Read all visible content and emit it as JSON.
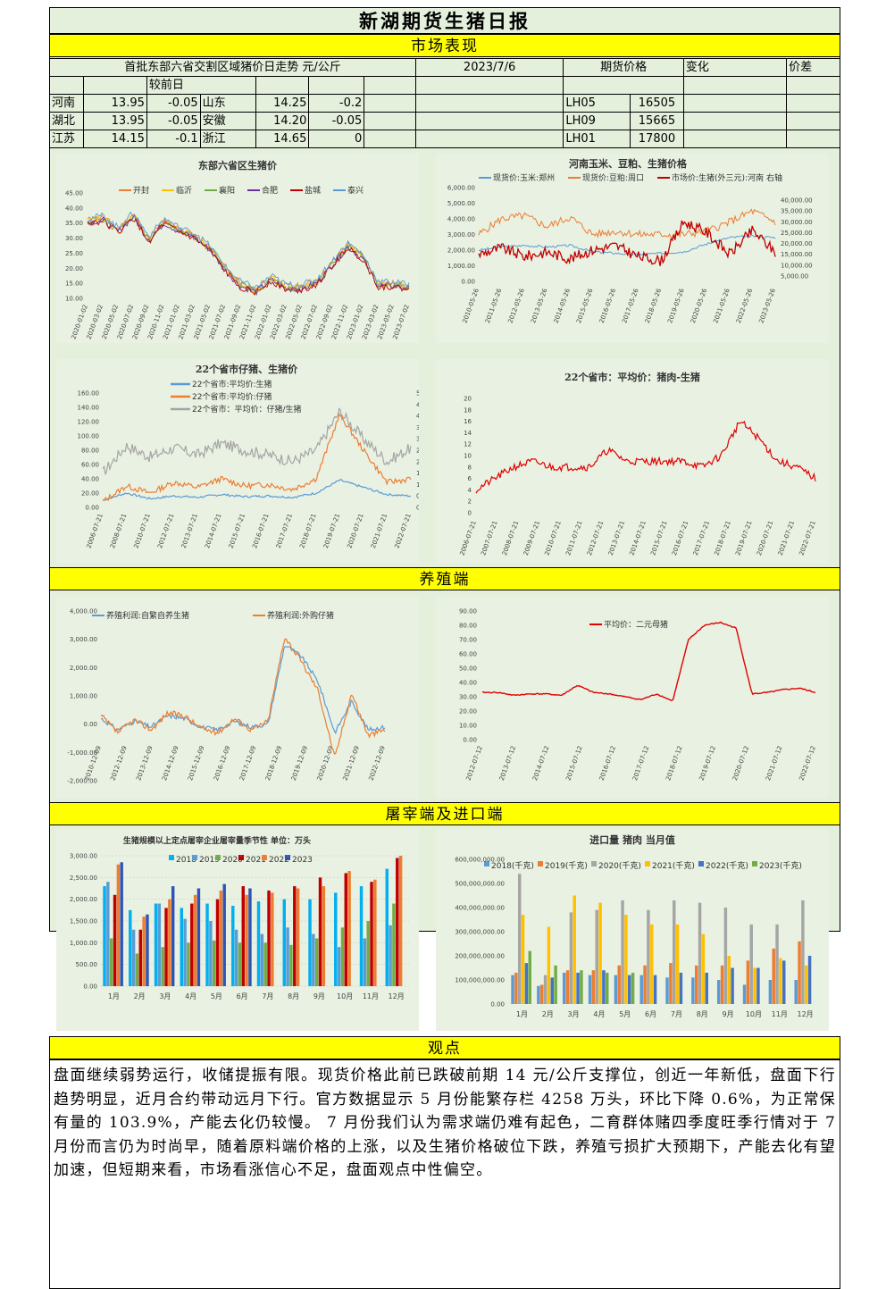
{
  "header": {
    "title": "新湖期货生猪日报"
  },
  "sections": {
    "market": "市场表现",
    "breeding": "养殖端",
    "slaughter": "屠宰端及进口端",
    "view": "观点"
  },
  "price_table": {
    "caption": "首批东部六省交割区域猪价日走势 元/公斤",
    "date": "2023/7/6",
    "futures_header": "期货价格",
    "change_header": "变化",
    "spread_header": "价差",
    "prev_label": "较前日",
    "rows": [
      {
        "p1": "河南",
        "v1": "13.95",
        "d1": "-0.05",
        "p2": "山东",
        "v2": "14.25",
        "d2": "-0.2",
        "contract": "LH05",
        "price": "16505"
      },
      {
        "p1": "湖北",
        "v1": "13.95",
        "d1": "-0.05",
        "p2": "安徽",
        "v2": "14.20",
        "d2": "-0.05",
        "contract": "LH09",
        "price": "15665"
      },
      {
        "p1": "江苏",
        "v1": "14.15",
        "d1": "-0.1",
        "p2": "浙江",
        "v2": "14.65",
        "d2": "0",
        "contract": "LH01",
        "price": "17800"
      }
    ]
  },
  "charts": {
    "c1": {
      "title": "东部六省区生猪价",
      "legend": [
        "开封",
        "临沂",
        "襄阳",
        "合肥",
        "盐城",
        "泰兴"
      ],
      "colors": [
        "#ed7d31",
        "#ffc000",
        "#70ad47",
        "#7030a0",
        "#c00000",
        "#5b9bd5"
      ],
      "yticks": [
        "45.00",
        "40.00",
        "35.00",
        "30.00",
        "25.00",
        "20.00",
        "15.00",
        "10.00"
      ],
      "xticks": [
        "2020-01-02",
        "2020-03-02",
        "2020-05-02",
        "2020-07-02",
        "2020-09-02",
        "2020-11-02",
        "2021-01-02",
        "2021-03-02",
        "2021-05-02",
        "2021-07-02",
        "2021-09-02",
        "2021-11-02",
        "2022-01-02",
        "2022-03-02",
        "2022-05-02",
        "2022-07-02",
        "2022-09-02",
        "2022-11-02",
        "2023-01-02",
        "2023-03-02",
        "2023-05-02",
        "2023-07-02"
      ]
    },
    "c2": {
      "title": "河南玉米、豆粕、生猪价格",
      "legend": [
        "现货价:玉米:郑州",
        "现货价:豆粕:周口",
        "市场价:生猪(外三元):河南 右轴"
      ],
      "colors": [
        "#5b9bd5",
        "#ed7d31",
        "#c00000"
      ],
      "yticks_left": [
        "6,000.00",
        "5,000.00",
        "4,000.00",
        "3,000.00",
        "2,000.00",
        "1,000.00",
        "0.00"
      ],
      "yticks_right": [
        "40,000.00",
        "35,000.00",
        "30,000.00",
        "25,000.00",
        "20,000.00",
        "15,000.00",
        "10,000.00",
        "5,000.00"
      ],
      "xticks": [
        "2010-05-26",
        "2011-05-26",
        "2012-05-26",
        "2013-05-26",
        "2014-05-26",
        "2015-05-26",
        "2016-05-26",
        "2017-05-26",
        "2018-05-26",
        "2019-05-26",
        "2020-05-26",
        "2021-05-26",
        "2022-05-26",
        "2023-05-26"
      ]
    },
    "c3": {
      "title": "22个省市仔猪、生猪价",
      "legend": [
        "22个省市:平均价:生猪",
        "22个省市:平均价:仔猪",
        "22个省市：平均价：仔猪/生猪"
      ],
      "colors": [
        "#5b9bd5",
        "#ed7d31",
        "#a5a5a5"
      ],
      "yticks_left": [
        "160.00",
        "140.00",
        "120.00",
        "100.00",
        "80.00",
        "60.00",
        "40.00",
        "20.00",
        "0.00"
      ],
      "yticks_right": [
        "5.00",
        "4.50",
        "4.00",
        "3.50",
        "3.00",
        "2.50",
        "2.00",
        "1.50",
        "1.00",
        "0.50",
        "0.00"
      ],
      "xticks": [
        "2006-07-21",
        "2008-07-21",
        "2010-07-21",
        "2012-07-21",
        "2013-07-21",
        "2014-07-21",
        "2015-07-21",
        "2016-07-21",
        "2017-07-21",
        "2018-07-21",
        "2019-07-21",
        "2020-07-21",
        "2021-07-21",
        "2022-07-21"
      ]
    },
    "c4": {
      "title": "22个省市：平均价：猪肉-生猪",
      "colors": [
        "#e00000"
      ],
      "yticks": [
        "20",
        "18",
        "16",
        "14",
        "12",
        "10",
        "8",
        "6",
        "4",
        "2",
        "0"
      ],
      "xticks": [
        "2006-07-21",
        "2007-07-21",
        "2008-07-21",
        "2009-07-21",
        "2010-07-21",
        "2011-07-21",
        "2012-07-21",
        "2013-07-21",
        "2014-07-21",
        "2015-07-21",
        "2016-07-21",
        "2017-07-21",
        "2018-07-21",
        "2019-07-21",
        "2020-07-21",
        "2021-07-21",
        "2022-07-21"
      ]
    },
    "c5": {
      "legend": [
        "养殖利润:自繁自养生猪",
        "养殖利润:外购仔猪"
      ],
      "colors": [
        "#5b9bd5",
        "#ed7d31"
      ],
      "yticks": [
        "4,000.00",
        "3,000.00",
        "2,000.00",
        "1,000.00",
        "0.00",
        "-1,000.00",
        "-2,000.00"
      ],
      "xticks": [
        "2010-12-09",
        "2012-12-09",
        "2013-12-09",
        "2014-12-09",
        "2015-12-09",
        "2016-12-09",
        "2017-12-09",
        "2018-12-09",
        "2019-12-09",
        "2020-12-09",
        "2021-12-09",
        "2022-12-09"
      ]
    },
    "c6": {
      "legend": [
        "平均价：二元母猪"
      ],
      "colors": [
        "#e00000"
      ],
      "yticks": [
        "90.00",
        "80.00",
        "70.00",
        "60.00",
        "50.00",
        "40.00",
        "30.00",
        "20.00",
        "10.00",
        "0.00"
      ],
      "xticks": [
        "2012-07-12",
        "2013-07-12",
        "2014-07-12",
        "2015-07-12",
        "2016-07-12",
        "2017-07-12",
        "2018-07-12",
        "2019-07-12",
        "2020-07-12",
        "2021-07-12",
        "2022-07-12"
      ]
    },
    "c7": {
      "title": "生猪规模以上定点屠宰企业屠宰量季节性  单位：万头",
      "legend": [
        "2018",
        "2019",
        "2020",
        "2021",
        "2022",
        "2023"
      ],
      "colors": [
        "#00b0f0",
        "#5b9bd5",
        "#70ad47",
        "#c00000",
        "#ed7d31",
        "#2f55b4"
      ],
      "yticks": [
        "3,000.00",
        "2,500.00",
        "2,000.00",
        "1,500.00",
        "1,000.00",
        "500.00",
        "0.00"
      ],
      "months": [
        "1月",
        "2月",
        "3月",
        "4月",
        "5月",
        "6月",
        "7月",
        "8月",
        "9月",
        "10月",
        "11月",
        "12月"
      ]
    },
    "c8": {
      "title": "进口量  猪肉  当月值",
      "legend": [
        "2018(千克)",
        "2019(千克)",
        "2020(千克)",
        "2021(千克)",
        "2022(千克)",
        "2023(千克)"
      ],
      "colors": [
        "#5b9bd5",
        "#ed7d31",
        "#a5a5a5",
        "#ffc000",
        "#4472c4",
        "#70ad47"
      ],
      "yticks": [
        "600,000,000.00",
        "500,000,000.00",
        "400,000,000.00",
        "300,000,000.00",
        "200,000,000.00",
        "100,000,000.00",
        "0.00"
      ],
      "months": [
        "1月",
        "2月",
        "3月",
        "4月",
        "5月",
        "6月",
        "7月",
        "8月",
        "9月",
        "10月",
        "11月",
        "12月"
      ]
    }
  },
  "chart_data": [
    {
      "type": "bar",
      "title": "生猪规模以上定点屠宰企业屠宰量季节性  单位：万头",
      "categories": [
        "1月",
        "2月",
        "3月",
        "4月",
        "5月",
        "6月",
        "7月",
        "8月",
        "9月",
        "10月",
        "11月",
        "12月"
      ],
      "ylim": [
        0,
        3000
      ],
      "series": [
        {
          "name": "2018",
          "values": [
            2300,
            1750,
            1900,
            1800,
            1900,
            1850,
            1950,
            2000,
            2000,
            2150,
            2300,
            2700
          ]
        },
        {
          "name": "2019",
          "values": [
            2400,
            1300,
            1900,
            1550,
            1500,
            1300,
            1200,
            1350,
            1200,
            900,
            1100,
            1400
          ]
        },
        {
          "name": "2020",
          "values": [
            1100,
            750,
            900,
            1000,
            1050,
            1000,
            1000,
            950,
            1100,
            1350,
            1500,
            1900
          ]
        },
        {
          "name": "2021",
          "values": [
            2100,
            1300,
            1800,
            1900,
            2000,
            2300,
            2200,
            2300,
            2500,
            2600,
            2400,
            2950
          ]
        },
        {
          "name": "2022",
          "values": [
            2800,
            1600,
            2000,
            2100,
            2200,
            2100,
            2150,
            2250,
            2300,
            2650,
            2450,
            3000
          ]
        },
        {
          "name": "2023",
          "values": [
            2850,
            1650,
            2300,
            2250,
            2350,
            2250,
            0,
            0,
            0,
            0,
            0,
            0
          ]
        }
      ]
    },
    {
      "type": "bar",
      "title": "进口量  猪肉  当月值",
      "categories": [
        "1月",
        "2月",
        "3月",
        "4月",
        "5月",
        "6月",
        "7月",
        "8月",
        "9月",
        "10月",
        "11月",
        "12月"
      ],
      "ylim": [
        0,
        600000000
      ],
      "series": [
        {
          "name": "2018(千克)",
          "values": [
            120000000,
            75000000,
            130000000,
            120000000,
            120000000,
            120000000,
            110000000,
            110000000,
            100000000,
            80000000,
            100000000,
            100000000
          ]
        },
        {
          "name": "2019(千克)",
          "values": [
            130000000,
            80000000,
            140000000,
            140000000,
            160000000,
            160000000,
            170000000,
            160000000,
            160000000,
            180000000,
            230000000,
            260000000
          ]
        },
        {
          "name": "2020(千克)",
          "values": [
            540000000,
            120000000,
            380000000,
            390000000,
            430000000,
            390000000,
            430000000,
            420000000,
            400000000,
            330000000,
            330000000,
            430000000
          ]
        },
        {
          "name": "2021(千克)",
          "values": [
            370000000,
            320000000,
            450000000,
            420000000,
            370000000,
            330000000,
            330000000,
            290000000,
            200000000,
            150000000,
            190000000,
            160000000
          ]
        },
        {
          "name": "2022(千克)",
          "values": [
            170000000,
            110000000,
            130000000,
            140000000,
            120000000,
            120000000,
            130000000,
            130000000,
            150000000,
            150000000,
            180000000,
            200000000
          ]
        },
        {
          "name": "2023(千克)",
          "values": [
            220000000,
            160000000,
            140000000,
            130000000,
            130000000,
            0,
            0,
            0,
            0,
            0,
            0,
            0
          ]
        }
      ]
    }
  ],
  "opinion": {
    "text": "盘面继续弱势运行，收储提振有限。现货价格此前已跌破前期 14 元/公斤支撑位，创近一年新低，盘面下行趋势明显，近月合约带动远月下行。官方数据显示 5 月份能繁存栏 4258 万头，环比下降 0.6%，为正常保有量的 103.9%，产能去化仍较慢。 7 月份我们认为需求端仍难有起色，二育群体赌四季度旺季行情对于 7 月份而言仍为时尚早，随着原料端价格的上涨，以及生猪价格破位下跌，养殖亏损扩大预期下，产能去化有望加速，但短期来看，市场看涨信心不足，盘面观点中性偏空。"
  }
}
